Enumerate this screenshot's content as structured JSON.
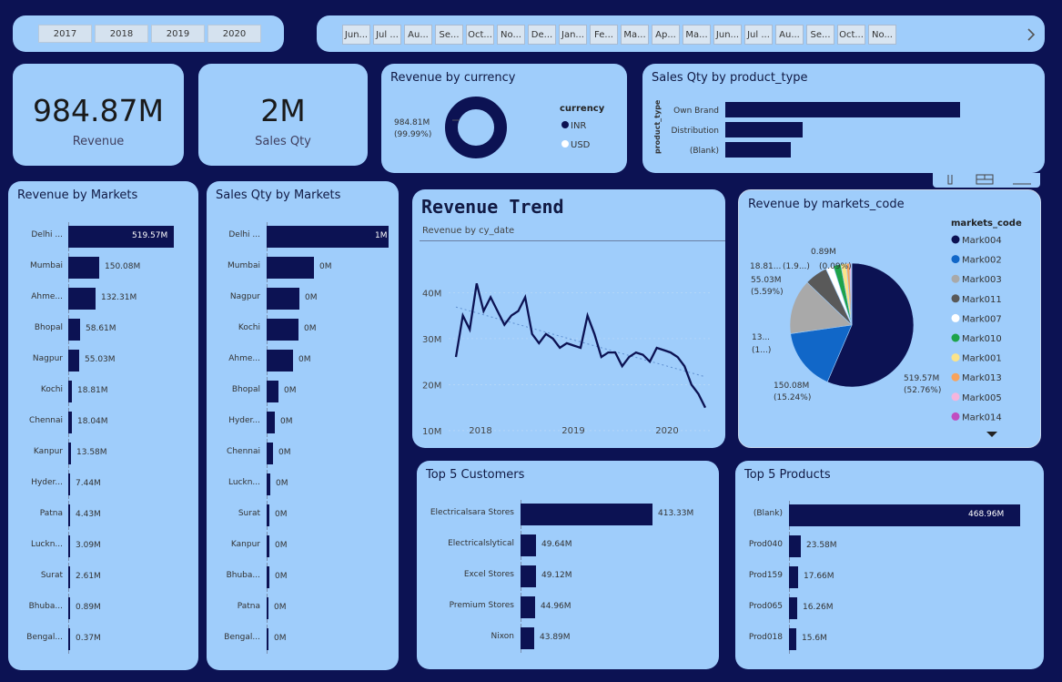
{
  "years": [
    "2017",
    "2018",
    "2019",
    "2020"
  ],
  "months": [
    "Jun...",
    "Jul ...",
    "Au...",
    "Se...",
    "Oct...",
    "No...",
    "De...",
    "Jan...",
    "Fe...",
    "Ma...",
    "Ap...",
    "Ma...",
    "Jun...",
    "Jul ...",
    "Au...",
    "Se...",
    "Oct...",
    "No..."
  ],
  "kpi": {
    "revenue_value": "984.87M",
    "revenue_label": "Revenue",
    "qty_value": "2M",
    "qty_label": "Sales Qty"
  },
  "currency_card": {
    "title": "Revenue by currency",
    "legend_title": "currency",
    "inr": "INR",
    "usd": "USD",
    "label_value": "984.81M",
    "label_pct": "(99.99%)"
  },
  "ptype_card": {
    "title": "Sales Qty by product_type",
    "axis": "product_type",
    "rows": [
      "Own Brand",
      "Distribution",
      "(Blank)"
    ]
  },
  "markets_rev": {
    "title": "Revenue by Markets"
  },
  "markets_qty": {
    "title": "Sales Qty by Markets"
  },
  "trend": {
    "title": "Revenue Trend",
    "subtitle": "Revenue by cy_date"
  },
  "pie_card": {
    "title": "Revenue by markets_code",
    "legend_title": "markets_code",
    "labels": {
      "mark004": [
        "519.57M",
        "(52.76%)"
      ],
      "mark002": [
        "150.08M",
        "(15.24%)"
      ],
      "mark003": [
        "13...",
        "(1...)"
      ],
      "mark011": [
        "55.03M",
        "(5.59%)"
      ],
      "small_a": "18.81...",
      "small_b": "(1.9...)",
      "small_c": "0.89M",
      "small_d": "(0.09%)"
    }
  },
  "customers_card": {
    "title": "Top 5 Customers"
  },
  "products_card": {
    "title": "Top 5 Products"
  },
  "chart_data": [
    {
      "type": "pie",
      "title": "Revenue by currency",
      "categories": [
        "INR",
        "USD"
      ],
      "values": [
        984.81,
        0.06
      ],
      "labels": [
        "984.81M (99.99%)"
      ],
      "colors": [
        "#0c1253",
        "#ffffff"
      ]
    },
    {
      "type": "bar",
      "orientation": "horizontal",
      "title": "Sales Qty by product_type",
      "categories": [
        "Own Brand",
        "Distribution",
        "(Blank)"
      ],
      "values": [
        1.0,
        0.33,
        0.28
      ],
      "ylabel": "product_type"
    },
    {
      "type": "bar",
      "orientation": "horizontal",
      "title": "Revenue by Markets",
      "categories": [
        "Delhi ...",
        "Mumbai",
        "Ahme...",
        "Bhopal",
        "Nagpur",
        "Kochi",
        "Chennai",
        "Kanpur",
        "Hyder...",
        "Patna",
        "Luckn...",
        "Surat",
        "Bhuba...",
        "Bengal..."
      ],
      "values": [
        519.57,
        150.08,
        132.31,
        58.61,
        55.03,
        18.81,
        18.04,
        13.58,
        7.44,
        4.43,
        3.09,
        2.61,
        0.89,
        0.37
      ],
      "labels": [
        "519.57M",
        "150.08M",
        "132.31M",
        "58.61M",
        "55.03M",
        "18.81M",
        "18.04M",
        "13.58M",
        "7.44M",
        "4.43M",
        "3.09M",
        "2.61M",
        "0.89M",
        "0.37M"
      ]
    },
    {
      "type": "bar",
      "orientation": "horizontal",
      "title": "Sales Qty by Markets",
      "categories": [
        "Delhi ...",
        "Mumbai",
        "Nagpur",
        "Kochi",
        "Ahme...",
        "Bhopal",
        "Hyder...",
        "Chennai",
        "Luckn...",
        "Surat",
        "Kanpur",
        "Bhuba...",
        "Patna",
        "Bengal..."
      ],
      "values": [
        1.0,
        0.39,
        0.27,
        0.26,
        0.22,
        0.1,
        0.07,
        0.05,
        0.03,
        0.02,
        0.02,
        0.02,
        0.01,
        0.01
      ],
      "labels": [
        "1M",
        "0M",
        "0M",
        "0M",
        "0M",
        "0M",
        "0M",
        "0M",
        "0M",
        "0M",
        "0M",
        "0M",
        "0M",
        "0M"
      ]
    },
    {
      "type": "line",
      "title": "Revenue Trend",
      "subtitle": "Revenue by cy_date",
      "x": [
        "2017-06",
        "2017-07",
        "2017-08",
        "2017-09",
        "2017-10",
        "2017-11",
        "2017-12",
        "2018-01",
        "2018-02",
        "2018-03",
        "2018-04",
        "2018-05",
        "2018-06",
        "2018-07",
        "2018-08",
        "2018-09",
        "2018-10",
        "2018-11",
        "2018-12",
        "2019-01",
        "2019-02",
        "2019-03",
        "2019-04",
        "2019-05",
        "2019-06",
        "2019-07",
        "2019-08",
        "2019-09",
        "2019-10",
        "2019-11",
        "2019-12",
        "2020-01",
        "2020-02",
        "2020-03",
        "2020-04",
        "2020-05",
        "2020-06"
      ],
      "values": [
        26,
        35,
        32,
        42,
        36,
        39,
        36,
        33,
        35,
        36,
        39,
        31,
        29,
        31,
        30,
        28,
        29,
        28.5,
        28,
        35,
        31,
        26,
        27,
        27,
        24,
        26,
        27,
        26.5,
        25,
        28,
        27.5,
        27,
        26,
        24,
        20,
        18,
        15
      ],
      "xticks": [
        "2018",
        "2019",
        "2020"
      ],
      "yticks": [
        "10M",
        "20M",
        "30M",
        "40M"
      ],
      "ylim": [
        9,
        47
      ]
    },
    {
      "type": "pie",
      "title": "Revenue by markets_code",
      "categories": [
        "Mark004",
        "Mark002",
        "Mark003",
        "Mark011",
        "Mark007",
        "Mark010",
        "Mark001",
        "Mark013",
        "Mark005",
        "Mark014"
      ],
      "values": [
        519.57,
        150.08,
        132.31,
        55.03,
        18.81,
        18.04,
        13.58,
        7.44,
        4.43,
        0.89
      ],
      "colors": [
        "#0c1253",
        "#1167c8",
        "#a9a9a9",
        "#595959",
        "#ffffff",
        "#1ea34a",
        "#fbe38a",
        "#f7a35c",
        "#f6b5dd",
        "#c04dc0"
      ]
    },
    {
      "type": "bar",
      "orientation": "horizontal",
      "title": "Top 5 Customers",
      "categories": [
        "Electricalsara Stores",
        "Electricalslytical",
        "Excel Stores",
        "Premium Stores",
        "Nixon"
      ],
      "values": [
        413.33,
        49.64,
        49.12,
        44.96,
        43.89
      ],
      "labels": [
        "413.33M",
        "49.64M",
        "49.12M",
        "44.96M",
        "43.89M"
      ]
    },
    {
      "type": "bar",
      "orientation": "horizontal",
      "title": "Top 5 Products",
      "categories": [
        "(Blank)",
        "Prod040",
        "Prod159",
        "Prod065",
        "Prod018"
      ],
      "values": [
        468.96,
        23.58,
        17.66,
        16.26,
        15.6
      ],
      "labels": [
        "468.96M",
        "23.58M",
        "17.66M",
        "16.26M",
        "15.6M"
      ]
    }
  ]
}
